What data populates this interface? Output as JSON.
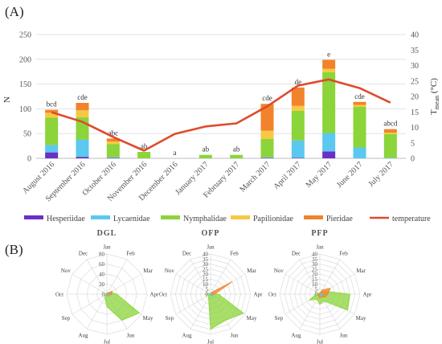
{
  "panel_a_label": "(A)",
  "panel_b_label": "(B)",
  "chart_data": [
    {
      "type": "bar",
      "stacked": true,
      "categories": [
        "August 2016",
        "September 2016",
        "October 2016",
        "November 2016",
        "December 2016",
        "January 2017",
        "February 2017",
        "March 2017",
        "April 2017",
        "May 2017",
        "June 2017",
        "July 2017"
      ],
      "series": [
        {
          "name": "Hesperiidae",
          "color": "#6a2fc8",
          "values": [
            12,
            3,
            1,
            0,
            0,
            0,
            0,
            1,
            1,
            14,
            0,
            0
          ]
        },
        {
          "name": "Lycaenidae",
          "color": "#5bc8ef",
          "values": [
            15,
            35,
            1,
            0,
            0,
            0,
            0,
            1,
            35,
            37,
            22,
            1
          ]
        },
        {
          "name": "Nymphalidae",
          "color": "#8bd43a",
          "values": [
            55,
            45,
            27,
            13,
            0,
            7,
            7,
            37,
            60,
            123,
            82,
            48
          ]
        },
        {
          "name": "Papilionidae",
          "color": "#f7c843",
          "values": [
            10,
            14,
            5,
            0,
            0,
            0,
            0,
            17,
            10,
            7,
            4,
            3
          ]
        },
        {
          "name": "Pieridae",
          "color": "#f2832c",
          "values": [
            6,
            15,
            6,
            0,
            0,
            0,
            0,
            54,
            37,
            18,
            6,
            7
          ]
        }
      ],
      "line": {
        "name": "temperature",
        "color": "#e04a2c",
        "axis": "right",
        "values": [
          14.9,
          11.8,
          6.9,
          2.5,
          7.9,
          10.3,
          11.3,
          16.8,
          23.5,
          25.5,
          22.7,
          18.0
        ]
      },
      "significance_labels": [
        "bcd",
        "cde",
        "abc",
        "ab",
        "a",
        "ab",
        "ab",
        "cde",
        "de",
        "e",
        "cde",
        "abcd"
      ],
      "ylabel": "N",
      "y2label": "T",
      "y2label_sub": "mean",
      "y2label_unit": "(°C)",
      "ylim": [
        0,
        250
      ],
      "y2lim": [
        0,
        40
      ],
      "yticks": [
        "0",
        "50",
        "100",
        "150",
        "200",
        "250"
      ],
      "y2ticks": [
        "0",
        "5",
        "10",
        "15",
        "20",
        "25",
        "30",
        "35",
        "40"
      ],
      "grid": true,
      "legend_position": "bottom"
    },
    {
      "type": "radar",
      "title": "DGL",
      "axes": [
        "Jan",
        "Feb",
        "Mar",
        "Apr",
        "May",
        "Jun",
        "Jul",
        "Aug",
        "Sep",
        "Oct",
        "Nov",
        "Dec"
      ],
      "rlim": [
        0,
        80
      ],
      "rticks": [
        "0",
        "20",
        "40",
        "60",
        "80"
      ],
      "series": [
        {
          "name": "Nymphalidae",
          "color": "#8bd43a",
          "values": [
            2,
            3,
            8,
            20,
            75,
            60,
            25,
            8,
            5,
            3,
            2,
            2
          ]
        },
        {
          "name": "Pieridae",
          "color": "#f2832c",
          "values": [
            1,
            2,
            12,
            10,
            5,
            4,
            3,
            2,
            1,
            1,
            0,
            0
          ]
        },
        {
          "name": "Lycaenidae",
          "color": "#5bc8ef",
          "values": [
            0,
            0,
            1,
            4,
            6,
            3,
            1,
            1,
            0,
            0,
            0,
            0
          ]
        }
      ]
    },
    {
      "type": "radar",
      "title": "OFP",
      "axes": [
        "Jan",
        "Feb",
        "Mar",
        "Apr",
        "May",
        "Jun",
        "Jul",
        "Aug",
        "Sep",
        "Oct",
        "Nov",
        "Dec"
      ],
      "rlim": [
        0,
        40
      ],
      "rticks": [
        "0",
        "5",
        "10",
        "15",
        "20",
        "25",
        "30",
        "35",
        "40"
      ],
      "series": [
        {
          "name": "Nymphalidae",
          "color": "#8bd43a",
          "values": [
            1,
            1,
            2,
            8,
            38,
            30,
            35,
            4,
            2,
            6,
            1,
            1
          ]
        },
        {
          "name": "Pieridae",
          "color": "#f2832c",
          "values": [
            0,
            2,
            25,
            4,
            2,
            1,
            1,
            0,
            0,
            0,
            0,
            0
          ]
        },
        {
          "name": "Lycaenidae",
          "color": "#5bc8ef",
          "values": [
            0,
            0,
            1,
            2,
            3,
            2,
            1,
            1,
            0,
            0,
            0,
            0
          ]
        }
      ]
    },
    {
      "type": "radar",
      "title": "PFP",
      "axes": [
        "Jan",
        "Feb",
        "Mar",
        "Apr",
        "May",
        "Jun",
        "Jul",
        "Aug",
        "Sep",
        "Oct",
        "Nov",
        "Dec"
      ],
      "rlim": [
        0,
        40
      ],
      "rticks": [
        "0",
        "5",
        "10",
        "15",
        "20",
        "25",
        "30",
        "35",
        "40"
      ],
      "series": [
        {
          "name": "Nymphalidae",
          "color": "#8bd43a",
          "values": [
            1,
            3,
            6,
            30,
            32,
            8,
            10,
            6,
            12,
            4,
            2,
            1
          ]
        },
        {
          "name": "Pieridae",
          "color": "#f2832c",
          "values": [
            1,
            5,
            12,
            8,
            6,
            3,
            4,
            2,
            2,
            1,
            1,
            1
          ]
        },
        {
          "name": "Lycaenidae",
          "color": "#5bc8ef",
          "values": [
            0,
            0,
            1,
            2,
            3,
            2,
            1,
            0,
            0,
            0,
            0,
            0
          ]
        }
      ]
    }
  ]
}
